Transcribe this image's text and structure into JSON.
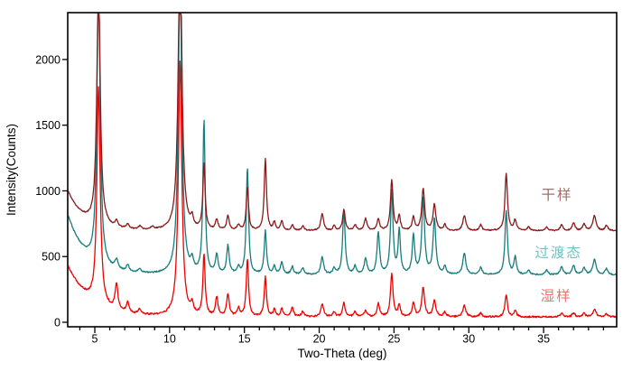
{
  "chart_data": {
    "type": "line",
    "title": "",
    "xlabel": "Two-Theta (deg)",
    "ylabel": "Intensity(Counts)",
    "xlim": [
      3.2,
      39.9
    ],
    "ylim": [
      -35,
      2350
    ],
    "x_major_ticks": [
      5,
      10,
      15,
      20,
      25,
      30,
      35
    ],
    "x_minor_step": 1,
    "y_ticks": [
      0,
      500,
      1000,
      1500,
      2000
    ],
    "grid": false,
    "background": "#ffffff",
    "axis_color": "#000000",
    "legend_position": "right-inside-annotations",
    "series": [
      {
        "name": "湿样",
        "color": "#f20000",
        "label_color": "#ef7272",
        "label_anchor": {
          "x": 35.85,
          "y": 165
        },
        "baseline": 40,
        "left_rise": {
          "amplitude": 385,
          "tau": 1.5
        },
        "noise": 13,
        "seed": 37,
        "peaks": [
          [
            5.25,
            1650,
            0.13
          ],
          [
            6.45,
            200,
            0.11
          ],
          [
            7.2,
            80,
            0.11
          ],
          [
            8.0,
            35,
            0.11
          ],
          [
            10.7,
            1950,
            0.14
          ],
          [
            11.5,
            75,
            0.1
          ],
          [
            12.3,
            465,
            0.09
          ],
          [
            13.15,
            140,
            0.1
          ],
          [
            13.9,
            170,
            0.1
          ],
          [
            14.6,
            60,
            0.1
          ],
          [
            15.2,
            435,
            0.09
          ],
          [
            16.4,
            300,
            0.09
          ],
          [
            17.0,
            50,
            0.09
          ],
          [
            17.5,
            60,
            0.1
          ],
          [
            18.2,
            70,
            0.1
          ],
          [
            18.9,
            40,
            0.1
          ],
          [
            20.2,
            95,
            0.11
          ],
          [
            21.0,
            40,
            0.1
          ],
          [
            21.65,
            115,
            0.09
          ],
          [
            22.4,
            40,
            0.1
          ],
          [
            23.1,
            45,
            0.11
          ],
          [
            23.95,
            100,
            0.1
          ],
          [
            24.85,
            330,
            0.1
          ],
          [
            25.35,
            85,
            0.09
          ],
          [
            26.3,
            105,
            0.1
          ],
          [
            26.95,
            220,
            0.11
          ],
          [
            27.7,
            125,
            0.11
          ],
          [
            28.4,
            35,
            0.1
          ],
          [
            29.7,
            85,
            0.12
          ],
          [
            30.8,
            30,
            0.1
          ],
          [
            32.5,
            165,
            0.1
          ],
          [
            33.1,
            45,
            0.1
          ],
          [
            36.2,
            25,
            0.11
          ],
          [
            37.0,
            30,
            0.11
          ],
          [
            37.7,
            25,
            0.11
          ],
          [
            38.4,
            55,
            0.13
          ],
          [
            39.2,
            25,
            0.11
          ]
        ]
      },
      {
        "name": "过渡态",
        "color": "#177d7d",
        "label_color": "#6cc6c6",
        "label_anchor": {
          "x": 36.0,
          "y": 495
        },
        "baseline": 360,
        "left_rise": {
          "amplitude": 455,
          "tau": 1.2
        },
        "noise": 10,
        "seed": 23,
        "peaks": [
          [
            5.25,
            2100,
            0.13
          ],
          [
            6.45,
            70,
            0.12
          ],
          [
            7.2,
            50,
            0.12
          ],
          [
            8.0,
            30,
            0.12
          ],
          [
            10.7,
            2300,
            0.14
          ],
          [
            11.5,
            80,
            0.1
          ],
          [
            12.3,
            1165,
            0.09
          ],
          [
            13.15,
            145,
            0.1
          ],
          [
            13.9,
            215,
            0.1
          ],
          [
            14.6,
            50,
            0.1
          ],
          [
            15.2,
            815,
            0.09
          ],
          [
            16.4,
            330,
            0.09
          ],
          [
            17.0,
            60,
            0.09
          ],
          [
            17.5,
            95,
            0.1
          ],
          [
            18.2,
            60,
            0.1
          ],
          [
            18.9,
            50,
            0.1
          ],
          [
            20.2,
            135,
            0.11
          ],
          [
            21.0,
            45,
            0.1
          ],
          [
            21.65,
            490,
            0.1
          ],
          [
            22.4,
            60,
            0.1
          ],
          [
            23.1,
            120,
            0.11
          ],
          [
            23.95,
            320,
            0.1
          ],
          [
            24.85,
            635,
            0.1
          ],
          [
            25.35,
            330,
            0.09
          ],
          [
            26.3,
            290,
            0.1
          ],
          [
            26.95,
            575,
            0.11
          ],
          [
            27.7,
            425,
            0.11
          ],
          [
            28.4,
            60,
            0.1
          ],
          [
            29.7,
            160,
            0.12
          ],
          [
            30.8,
            55,
            0.1
          ],
          [
            32.5,
            485,
            0.1
          ],
          [
            33.1,
            130,
            0.1
          ],
          [
            34.0,
            35,
            0.1
          ],
          [
            35.2,
            35,
            0.1
          ],
          [
            36.2,
            60,
            0.11
          ],
          [
            37.0,
            70,
            0.11
          ],
          [
            37.7,
            55,
            0.11
          ],
          [
            38.4,
            115,
            0.13
          ],
          [
            39.2,
            45,
            0.11
          ]
        ]
      },
      {
        "name": "干样",
        "color": "#8a1a1a",
        "label_color": "#a86e6a",
        "label_anchor": {
          "x": 35.9,
          "y": 935
        },
        "baseline": 695,
        "left_rise": {
          "amplitude": 300,
          "tau": 1.1
        },
        "noise": 9,
        "seed": 11,
        "peaks": [
          [
            5.25,
            1900,
            0.13
          ],
          [
            6.45,
            45,
            0.12
          ],
          [
            7.2,
            35,
            0.12
          ],
          [
            8.0,
            25,
            0.12
          ],
          [
            8.85,
            20,
            0.12
          ],
          [
            10.7,
            2300,
            0.14
          ],
          [
            11.5,
            70,
            0.1
          ],
          [
            12.3,
            500,
            0.09
          ],
          [
            13.15,
            80,
            0.1
          ],
          [
            13.9,
            110,
            0.1
          ],
          [
            14.6,
            40,
            0.1
          ],
          [
            15.2,
            330,
            0.09
          ],
          [
            16.4,
            550,
            0.09
          ],
          [
            17.0,
            60,
            0.09
          ],
          [
            17.5,
            70,
            0.1
          ],
          [
            18.2,
            40,
            0.1
          ],
          [
            18.9,
            35,
            0.1
          ],
          [
            20.2,
            130,
            0.11
          ],
          [
            21.0,
            35,
            0.1
          ],
          [
            21.65,
            160,
            0.1
          ],
          [
            22.4,
            45,
            0.1
          ],
          [
            23.1,
            90,
            0.11
          ],
          [
            23.95,
            90,
            0.1
          ],
          [
            24.85,
            385,
            0.1
          ],
          [
            25.35,
            110,
            0.09
          ],
          [
            26.3,
            100,
            0.1
          ],
          [
            26.95,
            320,
            0.11
          ],
          [
            27.7,
            200,
            0.11
          ],
          [
            28.4,
            45,
            0.1
          ],
          [
            29.7,
            115,
            0.12
          ],
          [
            30.8,
            45,
            0.1
          ],
          [
            32.5,
            435,
            0.1
          ],
          [
            33.1,
            80,
            0.1
          ],
          [
            34.0,
            30,
            0.1
          ],
          [
            35.2,
            30,
            0.1
          ],
          [
            36.2,
            45,
            0.11
          ],
          [
            37.0,
            60,
            0.11
          ],
          [
            37.7,
            50,
            0.11
          ],
          [
            38.4,
            115,
            0.13
          ],
          [
            39.2,
            40,
            0.11
          ]
        ]
      }
    ]
  }
}
